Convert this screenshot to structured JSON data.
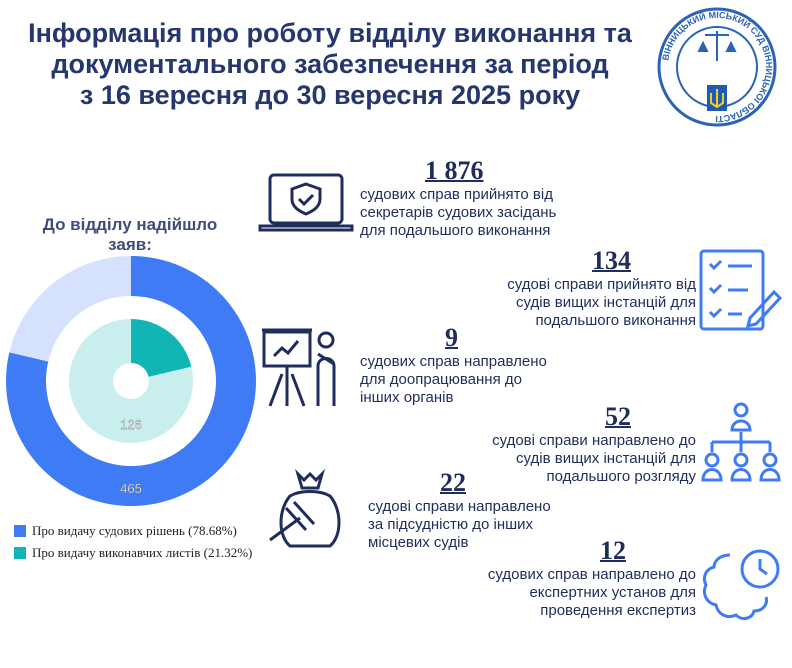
{
  "title": [
    "Інформація про роботу відділу виконання та",
    "документального забезпечення за період",
    "з 16 вересня до 30 вересня 2025 року"
  ],
  "logo": {
    "text": "ВІННИЦЬКИЙ МІСЬКИЙ СУД ВІННИЦЬКОЇ ОБЛАСТІ"
  },
  "chart_data": {
    "type": "pie",
    "title": "До відділу надійшло заяв:",
    "series": [
      {
        "name": "Про видачу судових рішень (78.68%)",
        "value": 465,
        "percent": 78.68,
        "color": "#3f7bf5",
        "ring": "outer"
      },
      {
        "name": "Про видачу виконавчих листів (21.32%)",
        "value": 126,
        "percent": 21.32,
        "color": "#12b5b5",
        "ring": "inner"
      }
    ],
    "labels": [
      "465",
      "126"
    ]
  },
  "stats": [
    {
      "value": "1 876",
      "text": [
        "судових справ прийнято від",
        "секретарів судових засідань",
        "для подальшого виконання"
      ],
      "icon": "laptop-shield-icon"
    },
    {
      "value": "134",
      "text": [
        "судові справи  прийнято від",
        "судів вищих інстанцій для",
        "подальшого виконання"
      ],
      "icon": "checklist-icon"
    },
    {
      "value": "9",
      "text": [
        "судових справ  направлено",
        "для доопрацювання до",
        "інших органів"
      ],
      "icon": "presenter-board-icon"
    },
    {
      "value": "52",
      "text": [
        "судові справи направлено до",
        "судів вищих інстанцій для",
        "подальшого розгляду"
      ],
      "icon": "hierarchy-icon"
    },
    {
      "value": "22",
      "text": [
        "судові справи  направлено",
        "за підсудністю до інших",
        "місцевих судів"
      ],
      "icon": "gavel-icon"
    },
    {
      "value": "12",
      "text": [
        "судових справ направлено до",
        "експертних установ для",
        "проведення експертиз"
      ],
      "icon": "brain-clock-icon"
    }
  ]
}
